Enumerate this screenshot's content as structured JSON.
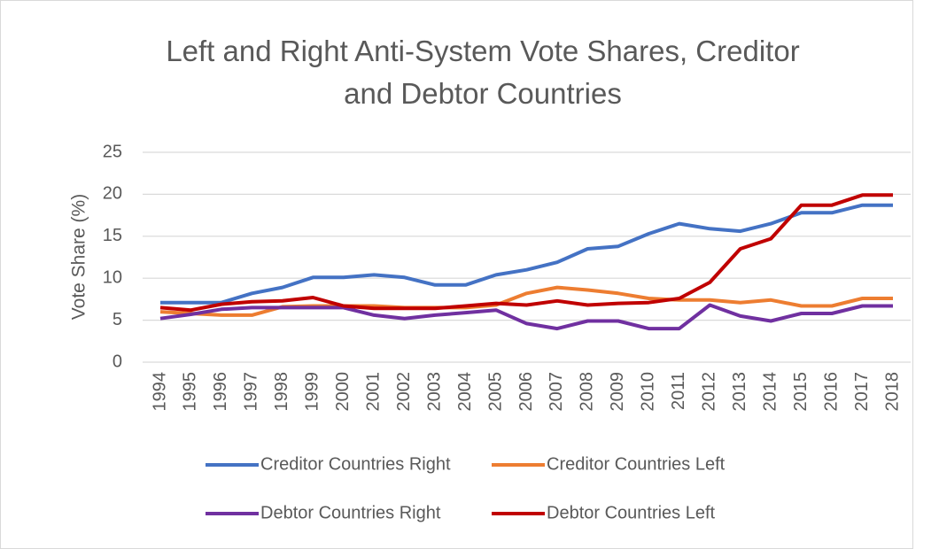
{
  "chart_data": {
    "type": "line",
    "title": "Left and Right Anti-System Vote Shares, Creditor and Debtor Countries",
    "y_label": "Vote Share (%)",
    "categories": [
      "1994",
      "1995",
      "1996",
      "1997",
      "1998",
      "1999",
      "2000",
      "2001",
      "2002",
      "2003",
      "2004",
      "2005",
      "2006",
      "2007",
      "2008",
      "2009",
      "2010",
      "2011",
      "2012",
      "2013",
      "2014",
      "2015",
      "2016",
      "2017",
      "2018"
    ],
    "series": [
      {
        "name": "Creditor Countries Right",
        "color": "#4472c4",
        "values": [
          7.1,
          7.1,
          7.1,
          8.2,
          8.9,
          10.1,
          10.1,
          10.4,
          10.1,
          9.2,
          9.2,
          10.4,
          11.0,
          11.9,
          13.5,
          13.8,
          15.3,
          16.5,
          15.9,
          15.6,
          16.5,
          17.8,
          17.8,
          18.7,
          18.7
        ]
      },
      {
        "name": "Creditor Countries Left",
        "color": "#ed7d31",
        "values": [
          6.0,
          5.8,
          5.6,
          5.6,
          6.6,
          6.7,
          6.7,
          6.7,
          6.5,
          6.5,
          6.5,
          6.8,
          8.2,
          8.9,
          8.6,
          8.2,
          7.6,
          7.4,
          7.4,
          7.1,
          7.4,
          6.7,
          6.7,
          7.6,
          7.6
        ]
      },
      {
        "name": "Debtor Countries Right",
        "color": "#7030a0",
        "values": [
          5.2,
          5.7,
          6.3,
          6.5,
          6.5,
          6.5,
          6.5,
          5.6,
          5.2,
          5.6,
          5.9,
          6.2,
          4.6,
          4.0,
          4.9,
          4.9,
          4.0,
          4.0,
          6.8,
          5.5,
          4.9,
          5.8,
          5.8,
          6.7,
          6.7
        ]
      },
      {
        "name": "Debtor Countries Left",
        "color": "#c00000",
        "values": [
          6.5,
          6.2,
          6.9,
          7.2,
          7.3,
          7.7,
          6.7,
          6.4,
          6.4,
          6.4,
          6.7,
          7.0,
          6.8,
          7.3,
          6.8,
          7.0,
          7.1,
          7.6,
          9.5,
          13.5,
          14.7,
          18.7,
          18.7,
          19.9,
          19.9
        ]
      }
    ],
    "ylim": [
      0,
      25
    ],
    "yticks": [
      0,
      5,
      10,
      15,
      20,
      25
    ],
    "grid": true
  }
}
